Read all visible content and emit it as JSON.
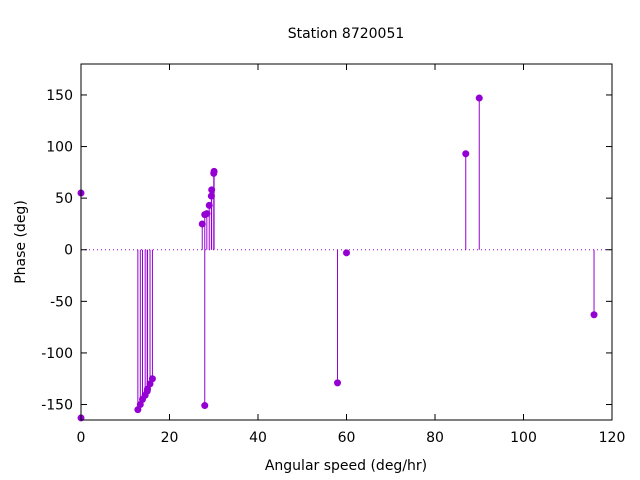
{
  "chart_data": {
    "type": "scatter",
    "title": "Station 8720051",
    "xlabel": "Angular speed (deg/hr)",
    "ylabel": "Phase (deg)",
    "xlim": [
      0,
      120
    ],
    "ylim": [
      -165,
      180
    ],
    "xticks": [
      0,
      20,
      40,
      60,
      80,
      100,
      120
    ],
    "xtick_labels": [
      "0",
      "20",
      "40",
      "60",
      "80",
      "100",
      "120"
    ],
    "yticks": [
      -150,
      -100,
      -50,
      0,
      50,
      100,
      150
    ],
    "ytick_labels": [
      "-150",
      "-100",
      "-50",
      "0",
      "50",
      "100",
      "150"
    ],
    "zero_line": "dotted",
    "grid": false,
    "legend": "none",
    "color": "#9400d3",
    "marker": "filled-circle-with-impulse",
    "points": [
      {
        "x": 0.0,
        "y": 55
      },
      {
        "x": 0.0,
        "y": -163
      },
      {
        "x": 12.85,
        "y": -155
      },
      {
        "x": 13.4,
        "y": -150
      },
      {
        "x": 13.9,
        "y": -145
      },
      {
        "x": 14.5,
        "y": -141
      },
      {
        "x": 14.96,
        "y": -137
      },
      {
        "x": 15.04,
        "y": -135
      },
      {
        "x": 15.6,
        "y": -130
      },
      {
        "x": 16.14,
        "y": -125
      },
      {
        "x": 27.4,
        "y": 25
      },
      {
        "x": 27.97,
        "y": 34
      },
      {
        "x": 27.97,
        "y": -151
      },
      {
        "x": 28.44,
        "y": 35
      },
      {
        "x": 28.98,
        "y": 43
      },
      {
        "x": 29.46,
        "y": 52
      },
      {
        "x": 29.53,
        "y": 58
      },
      {
        "x": 30.0,
        "y": 74
      },
      {
        "x": 30.08,
        "y": 76
      },
      {
        "x": 57.97,
        "y": -129
      },
      {
        "x": 60.0,
        "y": -3
      },
      {
        "x": 86.95,
        "y": 93
      },
      {
        "x": 90.0,
        "y": 147
      },
      {
        "x": 115.94,
        "y": -63
      }
    ]
  }
}
